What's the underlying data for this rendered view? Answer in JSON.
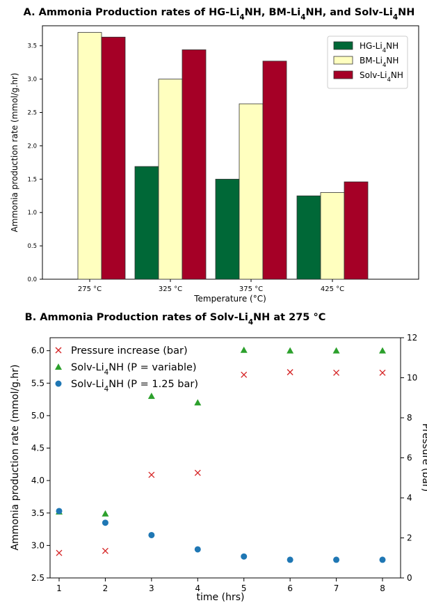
{
  "chart_data": [
    {
      "type": "bar",
      "title": "A. Ammonia Production rates of HG-Li4NH, BM-Li4NH, and Solv-Li4NH",
      "xlabel": "Temperature (°C)",
      "ylabel": "Ammonia production rate (mmol/g.hr)",
      "ylim": [
        0,
        3.8
      ],
      "yticks": [
        "0.0",
        "0.5",
        "1.0",
        "1.5",
        "2.0",
        "2.5",
        "3.0",
        "3.5"
      ],
      "categories": [
        "275 °C",
        "325 °C",
        "375 °C",
        "425 °C"
      ],
      "legend_position": "top-right",
      "series": [
        {
          "name": "HG-Li4NH",
          "color": "#006837",
          "values": [
            null,
            1.69,
            1.5,
            1.25
          ]
        },
        {
          "name": "BM-Li4NH",
          "color": "#ffffbf",
          "values": [
            3.7,
            3.0,
            2.63,
            1.3
          ]
        },
        {
          "name": "Solv-Li4NH",
          "color": "#a50026",
          "values": [
            3.63,
            3.44,
            3.27,
            1.46
          ]
        }
      ]
    },
    {
      "type": "scatter",
      "title": "B. Ammonia Production rates of Solv-Li4NH at 275 °C",
      "xlabel": "time (hrs)",
      "ylabel": "Ammonia production rate (mmol/g.hr)",
      "y2label": "Pressure (bar)",
      "ylim": [
        2.5,
        6.2
      ],
      "y2lim": [
        0,
        12
      ],
      "xticks": [
        "1",
        "2",
        "3",
        "4",
        "5",
        "6",
        "7",
        "8"
      ],
      "yticks": [
        "2.5",
        "3.0",
        "3.5",
        "4.0",
        "4.5",
        "5.0",
        "5.5",
        "6.0"
      ],
      "y2ticks": [
        "0",
        "2",
        "4",
        "6",
        "8",
        "10",
        "12"
      ],
      "legend_position": "top-left",
      "series": [
        {
          "name": "Pressure increase (bar)",
          "axis": "right",
          "marker": "x",
          "color": "#d62728",
          "x": [
            1,
            2,
            3,
            4,
            5,
            6,
            7,
            8
          ],
          "y": [
            1.25,
            1.35,
            5.15,
            5.25,
            10.15,
            10.28,
            10.25,
            10.25
          ]
        },
        {
          "name": "Solv-Li4NH (P = variable)",
          "axis": "left",
          "marker": "triangle",
          "color": "#2ca02c",
          "x": [
            1,
            2,
            3,
            4,
            5,
            6,
            7,
            8
          ],
          "y": [
            3.52,
            3.49,
            5.3,
            5.2,
            6.01,
            6.0,
            6.0,
            6.0
          ]
        },
        {
          "name": "Solv-Li4NH (P = 1.25 bar)",
          "axis": "left",
          "marker": "circle",
          "color": "#1f77b4",
          "x": [
            1,
            2,
            3,
            4,
            5,
            6,
            7,
            8
          ],
          "y": [
            3.53,
            3.35,
            3.16,
            2.94,
            2.83,
            2.78,
            2.78,
            2.78
          ]
        }
      ]
    }
  ]
}
